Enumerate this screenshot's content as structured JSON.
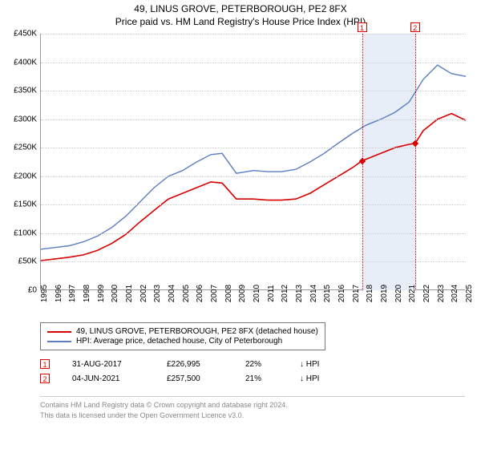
{
  "title_line1": "49, LINUS GROVE, PETERBOROUGH, PE2 8FX",
  "title_line2": "Price paid vs. HM Land Registry's House Price Index (HPI)",
  "chart": {
    "type": "line",
    "x_start_year": 1995,
    "x_end_year": 2025,
    "x_tick_years": [
      1995,
      1996,
      1997,
      1998,
      1999,
      2000,
      2001,
      2002,
      2003,
      2004,
      2005,
      2006,
      2007,
      2008,
      2009,
      2010,
      2011,
      2012,
      2013,
      2014,
      2015,
      2016,
      2017,
      2018,
      2019,
      2020,
      2021,
      2022,
      2023,
      2024,
      2025
    ],
    "ylim": [
      0,
      450000
    ],
    "y_ticks": [
      0,
      50000,
      100000,
      150000,
      200000,
      250000,
      300000,
      350000,
      400000,
      450000
    ],
    "y_tick_labels": [
      "£0",
      "£50K",
      "£100K",
      "£150K",
      "£200K",
      "£250K",
      "£300K",
      "£350K",
      "£400K",
      "£450K"
    ],
    "grid_color": "#cccccc",
    "plot_border_color": "#999999",
    "band_color": "#e8eef7",
    "band_start_year": 2017.67,
    "band_end_year": 2021.42,
    "series": [
      {
        "name": "price_paid",
        "color": "#d80000",
        "width": 1.6,
        "points_year": [
          1995,
          1996,
          1997,
          1998,
          1999,
          2000,
          2001,
          2002,
          2003,
          2004,
          2005,
          2006,
          2007,
          2007.8,
          2008.8,
          2010,
          2011,
          2012,
          2013,
          2014,
          2015,
          2016,
          2017,
          2017.67,
          2019,
          2020,
          2021,
          2021.42,
          2022,
          2023,
          2024,
          2025
        ],
        "points_value": [
          52000,
          55000,
          58000,
          62000,
          70000,
          82000,
          98000,
          120000,
          140000,
          160000,
          170000,
          180000,
          190000,
          188000,
          160000,
          160000,
          158000,
          158000,
          160000,
          170000,
          185000,
          200000,
          215000,
          226995,
          240000,
          250000,
          256000,
          257500,
          280000,
          300000,
          310000,
          298000
        ]
      },
      {
        "name": "hpi",
        "color": "#5a7fc0",
        "width": 1.4,
        "points_year": [
          1995,
          1996,
          1997,
          1998,
          1999,
          2000,
          2001,
          2002,
          2003,
          2004,
          2005,
          2006,
          2007,
          2007.8,
          2008.8,
          2010,
          2011,
          2012,
          2013,
          2014,
          2015,
          2016,
          2017,
          2018,
          2019,
          2020,
          2021,
          2022,
          2023,
          2024,
          2025
        ],
        "points_value": [
          72000,
          75000,
          78000,
          85000,
          95000,
          110000,
          130000,
          155000,
          180000,
          200000,
          210000,
          225000,
          238000,
          240000,
          205000,
          210000,
          208000,
          208000,
          212000,
          225000,
          240000,
          258000,
          275000,
          290000,
          300000,
          312000,
          330000,
          370000,
          395000,
          380000,
          375000
        ]
      }
    ],
    "sale_points": [
      {
        "year": 2017.67,
        "value": 226995,
        "color": "#d80000"
      },
      {
        "year": 2021.42,
        "value": 257500,
        "color": "#d80000"
      }
    ],
    "markers": [
      {
        "label": "1",
        "year": 2017.67,
        "color": "#d80000"
      },
      {
        "label": "2",
        "year": 2021.42,
        "color": "#d80000"
      }
    ]
  },
  "legend": {
    "rows": [
      {
        "color": "#d80000",
        "text": "49, LINUS GROVE, PETERBOROUGH, PE2 8FX (detached house)"
      },
      {
        "color": "#5a7fc0",
        "text": "HPI: Average price, detached house, City of Peterborough"
      }
    ]
  },
  "sales": [
    {
      "marker": "1",
      "marker_color": "#d80000",
      "date": "31-AUG-2017",
      "price": "£226,995",
      "diff": "22%",
      "arrow": "↓ HPI"
    },
    {
      "marker": "2",
      "marker_color": "#d80000",
      "date": "04-JUN-2021",
      "price": "£257,500",
      "diff": "21%",
      "arrow": "↓ HPI"
    }
  ],
  "footer_line1": "Contains HM Land Registry data © Crown copyright and database right 2024.",
  "footer_line2": "This data is licensed under the Open Government Licence v3.0."
}
